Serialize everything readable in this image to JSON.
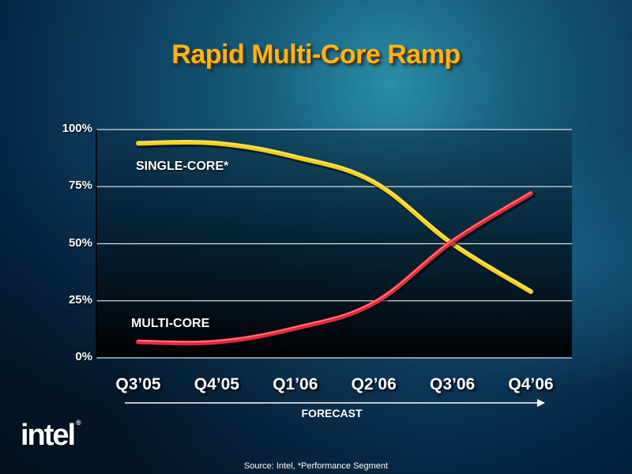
{
  "slide": {
    "title": "Rapid Multi-Core Ramp",
    "forecast_label": "FORECAST",
    "source": "Source: Intel, *Performance Segment",
    "logo_text": "intel"
  },
  "colors": {
    "single_core": "#f2cf1a",
    "multi_core": "#e8283a",
    "title": "#f5b41e"
  },
  "chart_data": {
    "type": "line",
    "title": "Rapid Multi-Core Ramp",
    "xlabel": "",
    "ylabel": "",
    "categories": [
      "Q3’05",
      "Q4’05",
      "Q1’06",
      "Q2’06",
      "Q3’06",
      "Q4’06"
    ],
    "y_ticks": [
      "0%",
      "25%",
      "50%",
      "75%",
      "100%"
    ],
    "ylim": [
      0,
      100
    ],
    "grid": true,
    "series": [
      {
        "name": "SINGLE-CORE*",
        "color": "#f2cf1a",
        "values": [
          94,
          94,
          88,
          77,
          50,
          29
        ]
      },
      {
        "name": "MULTI-CORE",
        "color": "#e8283a",
        "values": [
          7,
          7,
          13,
          24,
          51,
          72
        ]
      }
    ]
  }
}
